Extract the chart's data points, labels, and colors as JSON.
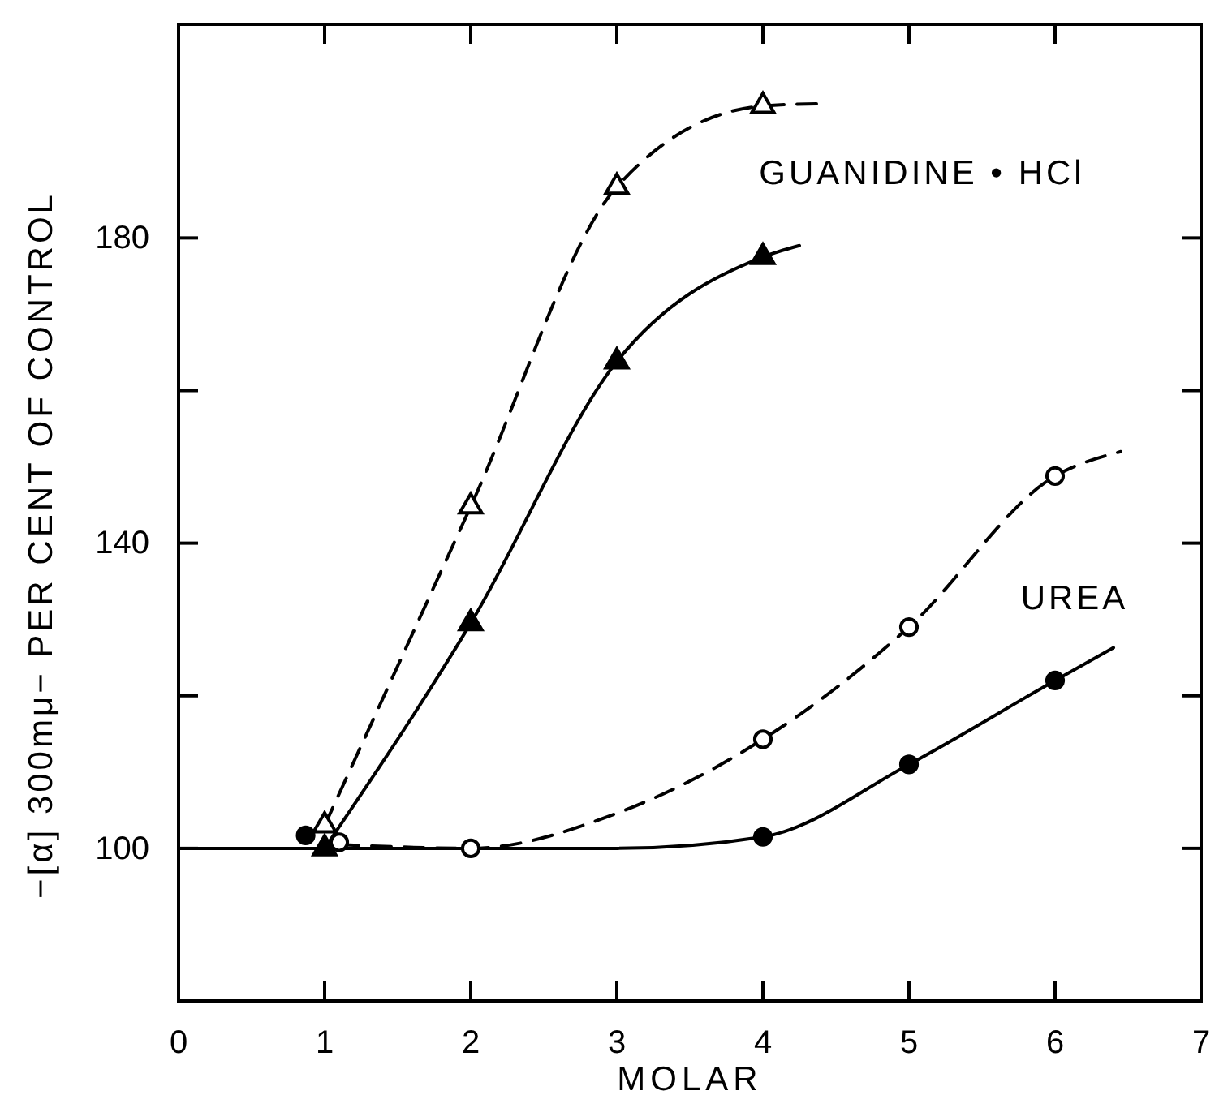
{
  "chart_data": {
    "type": "scatter",
    "xlabel": "MOLAR",
    "ylabel": "−[α] 300mμ− PER CENT OF CONTROL",
    "xlim": [
      0,
      7
    ],
    "xticks": [
      0,
      1,
      2,
      3,
      4,
      5,
      6,
      7
    ],
    "ylim": [
      80,
      208
    ],
    "yticks": [
      100,
      {
        "value": 120,
        "label": null
      },
      140,
      {
        "value": 160,
        "label": null
      },
      180
    ],
    "grid": false,
    "series": [
      {
        "type": "line",
        "color": "#000000",
        "line_style": "solid",
        "marker": "none",
        "x": [
          0,
          1,
          2,
          3,
          4,
          5,
          6,
          6.4
        ],
        "values": [
          100,
          100,
          100,
          100,
          101.5,
          111,
          122,
          126.3
        ]
      },
      {
        "type": "line",
        "color": "#000000",
        "line_style": "dashed",
        "marker": "none",
        "x": [
          1.1,
          2,
          3,
          4,
          5,
          6,
          6.45
        ],
        "values": [
          100.5,
          100,
          104.6,
          114.3,
          129,
          148.8,
          152
        ]
      },
      {
        "type": "line",
        "color": "#000000",
        "line_style": "solid",
        "marker": "none",
        "x": [
          1,
          2,
          3,
          4,
          4.25
        ],
        "values": [
          100,
          129.5,
          163.8,
          177.5,
          179
        ]
      },
      {
        "type": "line",
        "color": "#000000",
        "line_style": "dashed",
        "marker": "none",
        "x": [
          1,
          2,
          3,
          4,
          4.4
        ],
        "values": [
          103,
          144.8,
          186.7,
          197.3,
          197.6
        ]
      },
      {
        "color": "#000000",
        "marker": "triangle",
        "x": [
          1,
          2,
          3,
          4
        ],
        "values": [
          100,
          129.5,
          163.8,
          177.5
        ]
      },
      {
        "color": "#ffffff",
        "marker": "triangle",
        "x": [
          1,
          2,
          3,
          4
        ],
        "values": [
          103,
          144.8,
          186.7,
          197.3
        ]
      },
      {
        "color": "#000000",
        "marker": "circle",
        "x": [
          0.87,
          4,
          5,
          6
        ],
        "values": [
          101.7,
          101.5,
          111,
          122
        ]
      },
      {
        "color": "#ffffff",
        "marker": "circle",
        "x": [
          1.1,
          2,
          4,
          5,
          6
        ],
        "values": [
          100.8,
          100,
          114.3,
          129,
          148.8
        ]
      }
    ],
    "annotations": [
      "GUANIDINE • HCl",
      "UREA"
    ]
  }
}
